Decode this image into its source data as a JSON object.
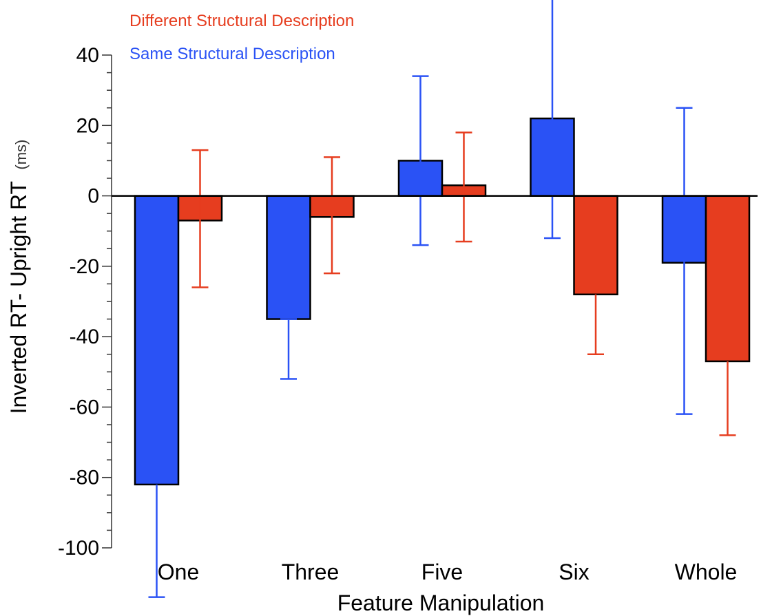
{
  "chart_data": {
    "type": "bar",
    "title": "",
    "xlabel": "Feature Manipulation",
    "ylabel": "Inverted RT- Upright RT",
    "ylabel_unit": "(ms)",
    "ylim": [
      -100,
      40
    ],
    "yticks": [
      "40",
      "20",
      "0",
      "-20",
      "-40",
      "-60",
      "-80",
      "-100"
    ],
    "ytick_values": [
      40,
      20,
      0,
      -20,
      -40,
      -60,
      -80,
      -100
    ],
    "categories": [
      "One",
      "Three",
      "Five",
      "Six",
      "Whole"
    ],
    "legend_placement": "top-left",
    "grid": false,
    "series": [
      {
        "name": "Same Structural Description",
        "color": "#2a52f5",
        "values": [
          -82,
          -35,
          10,
          22,
          -19
        ],
        "err_upper": [
          null,
          -35,
          34,
          56,
          25
        ],
        "err_lower": [
          -114,
          -52,
          -14,
          -12,
          -62
        ]
      },
      {
        "name": "Different Structural Description",
        "color": "#e63d1f",
        "values": [
          -7,
          -6,
          3,
          -28,
          -47
        ],
        "err_upper": [
          13,
          11,
          18,
          null,
          null
        ],
        "err_lower": [
          -26,
          -22,
          -13,
          -45,
          -68
        ]
      }
    ]
  }
}
